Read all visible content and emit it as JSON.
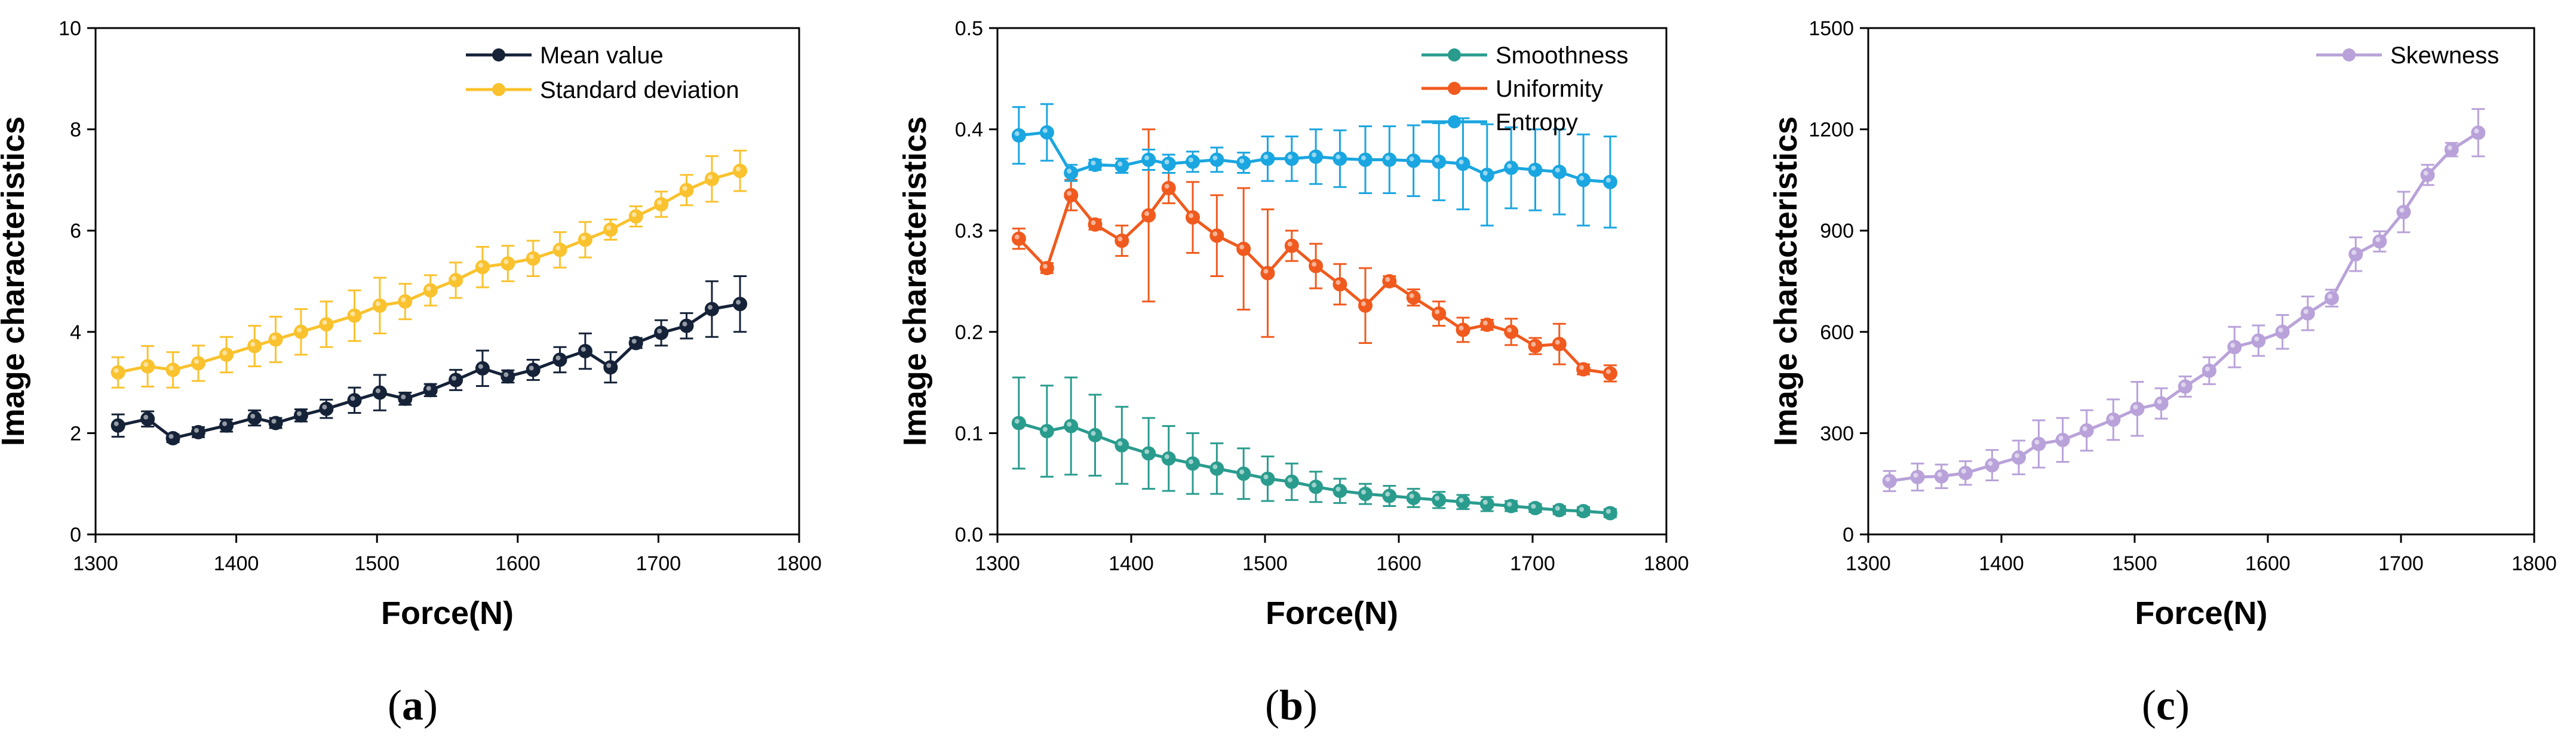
{
  "figure": {
    "panels": [
      "a",
      "b",
      "c"
    ]
  },
  "chart_data": [
    {
      "type": "line",
      "panel_label": "a",
      "xlabel": "Force(N)",
      "ylabel": "Image characteristics",
      "xlim": [
        1300,
        1800
      ],
      "ylim": [
        0,
        10
      ],
      "xticks": [
        "1300",
        "1400",
        "1500",
        "1600",
        "1700",
        "1800"
      ],
      "yticks": [
        "0",
        "2",
        "4",
        "6",
        "8",
        "10"
      ],
      "legend_position": "top-right",
      "x": [
        1316,
        1337,
        1355,
        1373,
        1393,
        1413,
        1428,
        1446,
        1464,
        1484,
        1502,
        1520,
        1538,
        1556,
        1575,
        1593,
        1611,
        1630,
        1648,
        1666,
        1684,
        1702,
        1720,
        1738,
        1758
      ],
      "series": [
        {
          "name": "Mean value",
          "color": "#152238",
          "values": [
            2.15,
            2.28,
            1.9,
            2.02,
            2.15,
            2.3,
            2.2,
            2.35,
            2.48,
            2.65,
            2.8,
            2.68,
            2.85,
            3.05,
            3.28,
            3.12,
            3.25,
            3.45,
            3.62,
            3.3,
            3.78,
            3.98,
            4.12,
            4.45,
            4.55
          ],
          "errors": [
            0.22,
            0.15,
            0.08,
            0.1,
            0.12,
            0.15,
            0.1,
            0.12,
            0.18,
            0.25,
            0.35,
            0.12,
            0.12,
            0.2,
            0.35,
            0.12,
            0.2,
            0.25,
            0.35,
            0.3,
            0.1,
            0.25,
            0.25,
            0.55,
            0.55
          ]
        },
        {
          "name": "Standard deviation",
          "color": "#F9C22E",
          "values": [
            3.2,
            3.32,
            3.25,
            3.38,
            3.55,
            3.72,
            3.85,
            4.0,
            4.15,
            4.32,
            4.52,
            4.6,
            4.82,
            5.02,
            5.28,
            5.35,
            5.45,
            5.62,
            5.82,
            6.02,
            6.28,
            6.52,
            6.8,
            7.02,
            7.18
          ],
          "errors": [
            0.3,
            0.4,
            0.35,
            0.35,
            0.35,
            0.4,
            0.45,
            0.45,
            0.45,
            0.5,
            0.55,
            0.35,
            0.3,
            0.35,
            0.4,
            0.35,
            0.35,
            0.35,
            0.35,
            0.2,
            0.2,
            0.25,
            0.3,
            0.45,
            0.4
          ]
        }
      ]
    },
    {
      "type": "line",
      "panel_label": "b",
      "xlabel": "Force(N)",
      "ylabel": "Image characteristics",
      "xlim": [
        1300,
        1800
      ],
      "ylim": [
        0,
        0.5
      ],
      "xticks": [
        "1300",
        "1400",
        "1500",
        "1600",
        "1700",
        "1800"
      ],
      "yticks": [
        "0.0",
        "0.1",
        "0.2",
        "0.3",
        "0.4",
        "0.5"
      ],
      "legend_position": "top-right",
      "x": [
        1316,
        1337,
        1355,
        1373,
        1393,
        1413,
        1428,
        1446,
        1464,
        1484,
        1502,
        1520,
        1538,
        1556,
        1575,
        1593,
        1611,
        1630,
        1648,
        1666,
        1684,
        1702,
        1720,
        1738,
        1758
      ],
      "series": [
        {
          "name": "Smoothness",
          "color": "#2A9C8E",
          "values": [
            0.11,
            0.102,
            0.107,
            0.098,
            0.088,
            0.08,
            0.075,
            0.07,
            0.065,
            0.06,
            0.055,
            0.052,
            0.047,
            0.043,
            0.04,
            0.038,
            0.036,
            0.034,
            0.032,
            0.03,
            0.028,
            0.026,
            0.024,
            0.023,
            0.021
          ],
          "errors": [
            0.045,
            0.045,
            0.048,
            0.04,
            0.038,
            0.035,
            0.032,
            0.03,
            0.025,
            0.025,
            0.022,
            0.018,
            0.015,
            0.012,
            0.01,
            0.01,
            0.009,
            0.008,
            0.007,
            0.007,
            0.005,
            0.004,
            0.004,
            0.004,
            0.004
          ]
        },
        {
          "name": "Uniformity",
          "color": "#F05A1E",
          "values": [
            0.292,
            0.263,
            0.335,
            0.306,
            0.29,
            0.315,
            0.342,
            0.313,
            0.295,
            0.282,
            0.258,
            0.285,
            0.265,
            0.247,
            0.226,
            0.25,
            0.234,
            0.218,
            0.202,
            0.207,
            0.2,
            0.186,
            0.188,
            0.163,
            0.159
          ],
          "errors": [
            0.01,
            0.005,
            0.015,
            0.005,
            0.015,
            0.085,
            0.015,
            0.035,
            0.04,
            0.06,
            0.063,
            0.015,
            0.022,
            0.02,
            0.037,
            0.005,
            0.008,
            0.012,
            0.012,
            0.005,
            0.013,
            0.008,
            0.02,
            0.005,
            0.008
          ]
        },
        {
          "name": "Entropy",
          "color": "#1AA6E0",
          "values": [
            0.394,
            0.397,
            0.357,
            0.365,
            0.364,
            0.37,
            0.366,
            0.368,
            0.37,
            0.367,
            0.371,
            0.371,
            0.373,
            0.371,
            0.37,
            0.37,
            0.369,
            0.368,
            0.366,
            0.355,
            0.362,
            0.36,
            0.358,
            0.35,
            0.348
          ],
          "errors": [
            0.028,
            0.028,
            0.008,
            0.005,
            0.007,
            0.01,
            0.009,
            0.01,
            0.012,
            0.01,
            0.022,
            0.022,
            0.027,
            0.028,
            0.033,
            0.033,
            0.035,
            0.038,
            0.045,
            0.05,
            0.04,
            0.04,
            0.042,
            0.045,
            0.045
          ]
        }
      ]
    },
    {
      "type": "line",
      "panel_label": "c",
      "xlabel": "Force(N)",
      "ylabel": "Image characteristics",
      "xlim": [
        1300,
        1800
      ],
      "ylim": [
        0,
        1500
      ],
      "xticks": [
        "1300",
        "1400",
        "1500",
        "1600",
        "1700",
        "1800"
      ],
      "yticks": [
        "0",
        "300",
        "600",
        "900",
        "1200",
        "1500"
      ],
      "legend_position": "top-right",
      "x": [
        1316,
        1337,
        1355,
        1373,
        1393,
        1413,
        1428,
        1446,
        1464,
        1484,
        1502,
        1520,
        1538,
        1556,
        1575,
        1593,
        1611,
        1630,
        1648,
        1666,
        1684,
        1702,
        1720,
        1738,
        1758
      ],
      "series": [
        {
          "name": "Skewness",
          "color": "#B9A2D9",
          "values": [
            158,
            170,
            172,
            182,
            205,
            228,
            268,
            280,
            308,
            340,
            372,
            388,
            438,
            485,
            555,
            574,
            600,
            655,
            700,
            830,
            868,
            955,
            1065,
            1140,
            1190
          ],
          "errors": [
            30,
            40,
            35,
            35,
            45,
            50,
            70,
            65,
            60,
            60,
            80,
            45,
            30,
            40,
            60,
            45,
            50,
            50,
            25,
            50,
            30,
            60,
            30,
            20,
            70
          ]
        }
      ]
    }
  ]
}
